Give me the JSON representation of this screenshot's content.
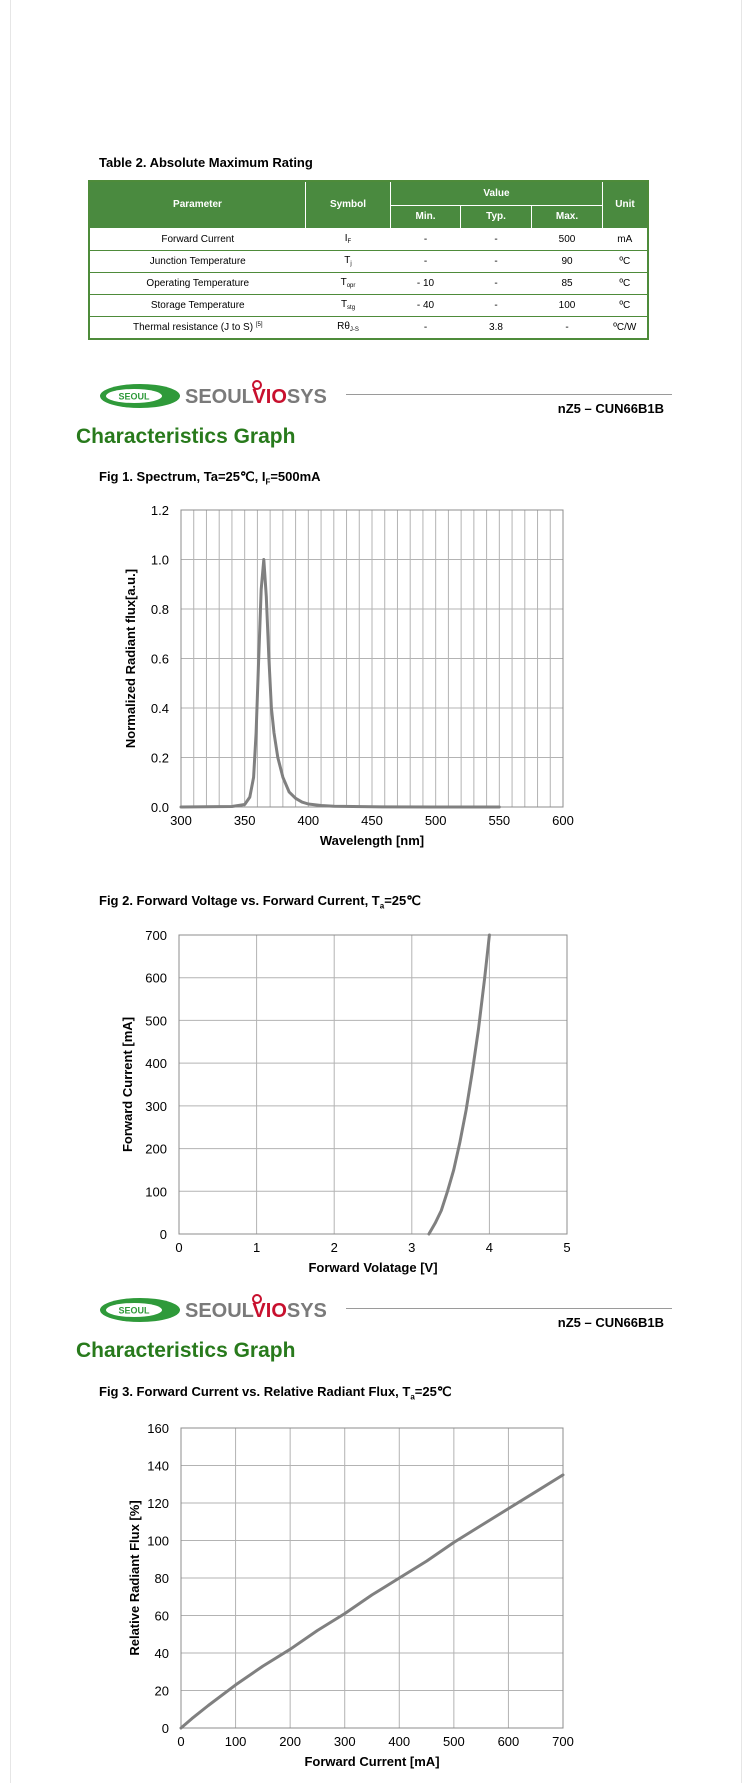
{
  "table": {
    "title": "Table 2. Absolute Maximum Rating",
    "headers": {
      "parameter": "Parameter",
      "symbol": "Symbol",
      "value": "Value",
      "min": "Min.",
      "typ": "Typ.",
      "max": "Max.",
      "unit": "Unit"
    },
    "rows": [
      {
        "parameter": "Forward Current",
        "sym": "I",
        "sub": "F",
        "min": "-",
        "typ": "-",
        "max": "500",
        "unit": "mA"
      },
      {
        "parameter": "Junction Temperature",
        "sym": "T",
        "sub": "j",
        "min": "-",
        "typ": "-",
        "max": "90",
        "unit": "ºC"
      },
      {
        "parameter": "Operating Temperature",
        "sym": "T",
        "sub": "opr",
        "min": "- 10",
        "typ": "-",
        "max": "85",
        "unit": "ºC"
      },
      {
        "parameter": "Storage  Temperature",
        "sym": "T",
        "sub": "stg",
        "min": "- 40",
        "typ": "-",
        "max": "100",
        "unit": "ºC"
      },
      {
        "parameter": "Thermal resistance (J to S)",
        "sup": "[5]",
        "sym": "Rθ",
        "sub": "J-S",
        "min": "-",
        "typ": "3.8",
        "max": "-",
        "unit": "ºC/W"
      }
    ]
  },
  "header": {
    "logo_badge": "SEOUL",
    "logo_text_a": "SEOUL",
    "logo_text_b": "VIO",
    "logo_text_c": "SYS",
    "part_number": "nZ5 – CUN66B1B"
  },
  "section_title": "Characteristics Graph",
  "fig1": {
    "title_a": "Fig 1. Spectrum, Ta=25℃, I",
    "title_sub": "F",
    "title_b": "=500mA"
  },
  "fig2": {
    "title_a": "Fig 2. Forward Voltage vs. Forward Current, T",
    "title_sub": "a",
    "title_b": "=25℃"
  },
  "fig3": {
    "title_a": "Fig 3. Forward Current vs. Relative Radiant Flux, T",
    "title_sub": "a",
    "title_b": "=25℃"
  },
  "colors": {
    "table_green": "#4a8a3f",
    "title_green": "#287a1c",
    "curve": "#808080",
    "grid": "#b3b3b3",
    "logo_red": "#c8102e"
  },
  "chart_data": [
    {
      "type": "line",
      "xlabel": "Wavelength [nm]",
      "ylabel": "Normalized Radiant flux[a.u.]",
      "xlim": [
        300,
        600
      ],
      "ylim": [
        0,
        1.2
      ],
      "xticks": [
        300,
        350,
        400,
        450,
        500,
        550,
        600
      ],
      "yticks": [
        0.0,
        0.2,
        0.4,
        0.6,
        0.8,
        1.0,
        1.2
      ],
      "ytick_labels": [
        "0.0",
        "0.2",
        "0.4",
        "0.6",
        "0.8",
        "1.0",
        "1.2"
      ],
      "x_minor_step": 10,
      "series": [
        {
          "x": [
            300,
            340,
            350,
            354,
            357,
            359,
            361,
            363,
            365,
            367,
            369,
            371,
            373,
            376,
            380,
            385,
            390,
            395,
            400,
            410,
            420,
            450,
            500,
            550
          ],
          "y": [
            0,
            0.002,
            0.01,
            0.04,
            0.12,
            0.3,
            0.6,
            0.88,
            1.0,
            0.85,
            0.6,
            0.4,
            0.3,
            0.2,
            0.12,
            0.06,
            0.035,
            0.02,
            0.012,
            0.006,
            0.003,
            0.001,
            0,
            0
          ]
        }
      ]
    },
    {
      "type": "line",
      "xlabel": "Forward  Volatage [V]",
      "ylabel": "Forward Current [mA]",
      "xlim": [
        0,
        5
      ],
      "ylim": [
        0,
        700
      ],
      "xticks": [
        0,
        1,
        2,
        3,
        4,
        5
      ],
      "yticks": [
        0,
        100,
        200,
        300,
        400,
        500,
        600,
        700
      ],
      "series": [
        {
          "x": [
            3.22,
            3.3,
            3.38,
            3.46,
            3.54,
            3.62,
            3.7,
            3.78,
            3.86,
            3.94,
            4.0
          ],
          "y": [
            0,
            25,
            55,
            100,
            150,
            215,
            290,
            380,
            480,
            600,
            700
          ]
        }
      ]
    },
    {
      "type": "line",
      "xlabel": "Forward Current [mA]",
      "ylabel": "Relative Radiant Flux [%]",
      "xlim": [
        0,
        700
      ],
      "ylim": [
        0,
        160
      ],
      "xticks": [
        0,
        100,
        200,
        300,
        400,
        500,
        600,
        700
      ],
      "yticks": [
        0,
        20,
        40,
        60,
        80,
        100,
        120,
        140,
        160
      ],
      "series": [
        {
          "x": [
            0,
            20,
            50,
            100,
            150,
            200,
            250,
            300,
            350,
            400,
            450,
            500,
            550,
            600,
            650,
            700
          ],
          "y": [
            0,
            5,
            12,
            23,
            33,
            42,
            52,
            61,
            71,
            80,
            89,
            99,
            108,
            117,
            126,
            135
          ]
        }
      ]
    }
  ]
}
